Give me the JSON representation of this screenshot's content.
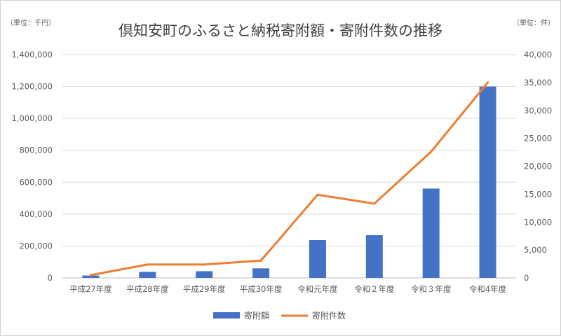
{
  "chart_data": {
    "type": "bar",
    "title": "倶知安町のふるさと納税寄附額・寄附件数の推移",
    "left_unit": "（単位：千円）",
    "right_unit": "（単位：件）",
    "categories": [
      "平成27年度",
      "平成28年度",
      "平成29年度",
      "平成30年度",
      "令和元年度",
      "令和２年度",
      "令和３年度",
      "令和4年度"
    ],
    "y_left": {
      "min": 0,
      "max": 1400000,
      "step": 200000,
      "tick_labels": [
        "0",
        "200,000",
        "400,000",
        "600,000",
        "800,000",
        "1,000,000",
        "1,200,000",
        "1,400,000"
      ]
    },
    "y_right": {
      "min": 0,
      "max": 40000,
      "step": 5000,
      "tick_labels": [
        "0",
        "5,000",
        "10,000",
        "15,000",
        "20,000",
        "25,000",
        "30,000",
        "35,000",
        "40,000"
      ]
    },
    "grid": true,
    "legend_position": "bottom",
    "series": [
      {
        "name": "寄附額",
        "type": "bar",
        "axis": "left",
        "color": "#4472C4",
        "values": [
          15000,
          38000,
          42000,
          60000,
          237000,
          268000,
          560000,
          1200000
        ]
      },
      {
        "name": "寄附件数",
        "type": "line",
        "axis": "right",
        "color": "#ED7D31",
        "values": [
          500,
          2400,
          2400,
          3100,
          14900,
          13300,
          22600,
          35000
        ]
      }
    ]
  }
}
